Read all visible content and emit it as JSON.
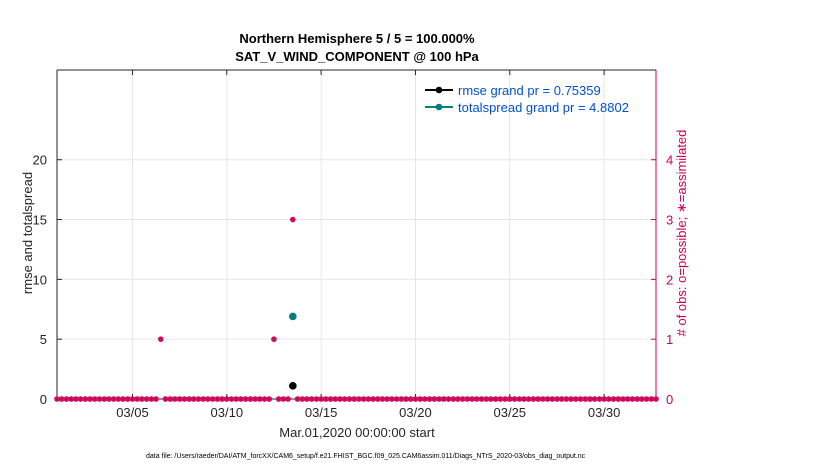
{
  "chart_data": {
    "type": "scatter",
    "title": "Northern Hemisphere 5 / 5 = 100.000%",
    "subtitle": "SAT_V_WIND_COMPONENT @ 100 hPa",
    "xlabel": "Mar.01,2020 00:00:00 start",
    "ylabel": "rmse and totalspread",
    "y2label": "# of obs: o=possible; ∗=assimilated",
    "footnote": "data file: /Users/raeder/DAI/ATM_forcXX/CAM6_setup/f.e21.FHIST_BGC.f09_025.CAM6assim.011/Diags_NTrS_2020-03/obs_diag_output.nc",
    "x_unit": "days since 2020-03-01",
    "xlim": [
      0,
      31.75
    ],
    "ylim": [
      0,
      27.5
    ],
    "y2lim": [
      0,
      5.5
    ],
    "x_ticks": [
      {
        "x": 4,
        "label": "03/05"
      },
      {
        "x": 9,
        "label": "03/10"
      },
      {
        "x": 14,
        "label": "03/15"
      },
      {
        "x": 19,
        "label": "03/20"
      },
      {
        "x": 24,
        "label": "03/25"
      },
      {
        "x": 29,
        "label": "03/30"
      }
    ],
    "y_ticks": [
      0,
      5,
      10,
      15,
      20
    ],
    "y2_ticks": [
      0,
      1,
      2,
      3,
      4
    ],
    "grid": true,
    "legend_position": "top-right",
    "colors": {
      "rmse": "#000000",
      "spread": "#008080",
      "obs": "#cc0055",
      "axis": "#262626",
      "grid": "#e6e6e6"
    },
    "series": [
      {
        "name": "rmse grand pr = 0.75359",
        "axis": "left",
        "color": "#000000",
        "marker": "circle",
        "points": [
          {
            "x": 12.5,
            "y": 1.1
          }
        ]
      },
      {
        "name": "totalspread grand pr = 4.8802",
        "axis": "left",
        "color": "#008080",
        "marker": "circle",
        "points": [
          {
            "x": 12.5,
            "y": 6.9
          }
        ]
      }
    ],
    "obs_counts": {
      "axis": "right",
      "color": "#cc0055",
      "start": 0,
      "step": 0.25,
      "n": 128,
      "nonzero": [
        {
          "x": 5.5,
          "y": 1
        },
        {
          "x": 11.5,
          "y": 1
        },
        {
          "x": 12.5,
          "y": 3
        }
      ]
    }
  }
}
